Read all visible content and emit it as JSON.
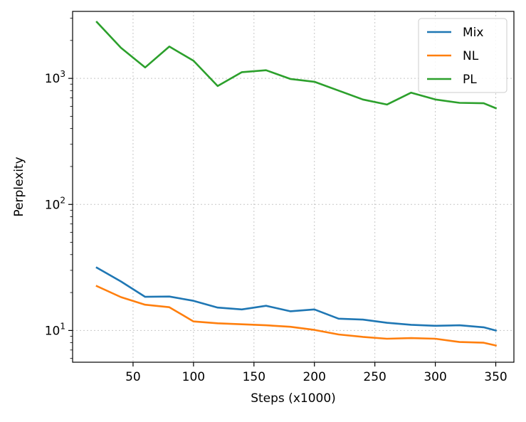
{
  "chart_data": {
    "type": "line",
    "title": "",
    "xlabel": "Steps (x1000)",
    "ylabel": "Perplexity",
    "xlim": [
      0,
      365
    ],
    "ylim": [
      5.6,
      3400
    ],
    "yscale": "log",
    "grid": true,
    "legend_position": "top-right",
    "xticks": [
      50,
      100,
      150,
      200,
      250,
      300,
      350
    ],
    "xtick_labels": [
      "50",
      "100",
      "150",
      "200",
      "250",
      "300",
      "350"
    ],
    "yticks": [
      10,
      100,
      1000
    ],
    "ytick_labels": [
      {
        "base": "10",
        "exp": "1"
      },
      {
        "base": "10",
        "exp": "2"
      },
      {
        "base": "10",
        "exp": "3"
      }
    ],
    "x": [
      20,
      40,
      60,
      80,
      100,
      120,
      140,
      160,
      180,
      200,
      220,
      240,
      260,
      280,
      300,
      320,
      340,
      350
    ],
    "series": [
      {
        "name": "Mix",
        "color": "#1f77b4",
        "values": [
          31.5,
          24.5,
          18.5,
          18.6,
          17.2,
          15.2,
          14.7,
          15.7,
          14.2,
          14.7,
          12.4,
          12.2,
          11.5,
          11.1,
          10.9,
          11.0,
          10.6,
          10.0
        ]
      },
      {
        "name": "NL",
        "color": "#ff7f0e",
        "values": [
          22.5,
          18.4,
          16.0,
          15.3,
          11.8,
          11.4,
          11.2,
          11.0,
          10.7,
          10.1,
          9.3,
          8.9,
          8.6,
          8.7,
          8.6,
          8.1,
          8.0,
          7.6
        ]
      },
      {
        "name": "PL",
        "color": "#2ca02c",
        "values": [
          2800,
          1750,
          1220,
          1790,
          1380,
          870,
          1120,
          1160,
          990,
          940,
          800,
          680,
          620,
          770,
          680,
          640,
          635,
          580
        ]
      }
    ]
  }
}
